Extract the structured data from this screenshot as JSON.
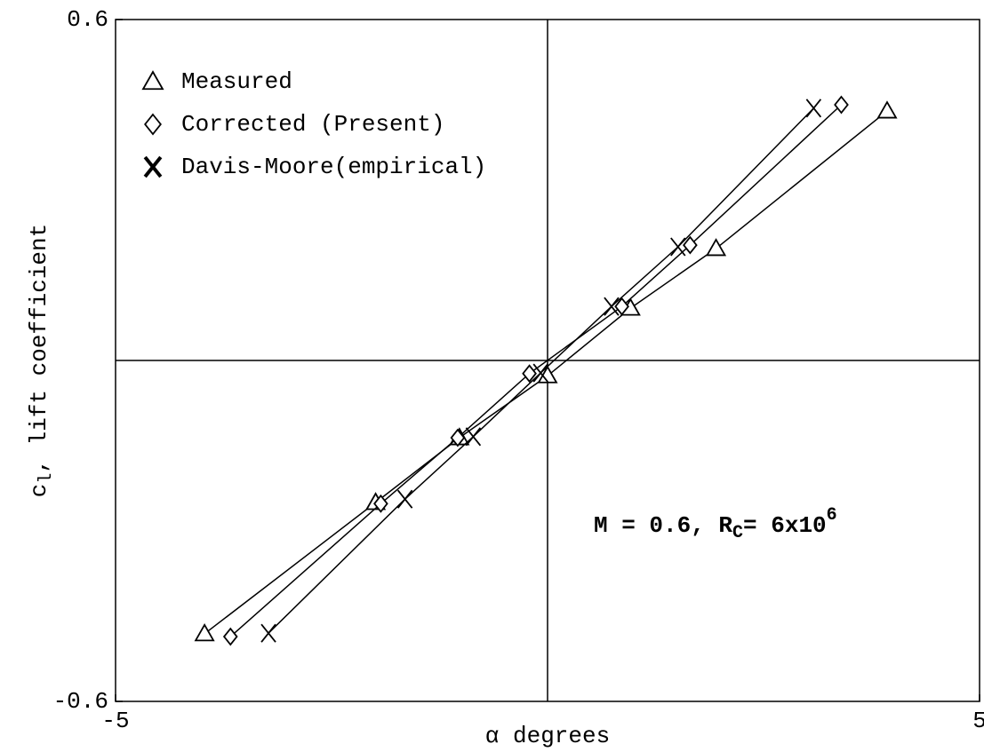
{
  "chart_data": {
    "type": "line",
    "xlabel": "α degrees",
    "ylabel": {
      "main": "c",
      "sub": "l",
      "rest": ", lift coefficient"
    },
    "annotation": {
      "main": "M = 0.6, R",
      "sub": "C",
      "mid": "= 6x10",
      "sup": "6"
    },
    "xlim": [
      -5,
      5
    ],
    "xticks": [
      -5,
      5
    ],
    "ylim": [
      -0.6,
      0.6
    ],
    "yticks": [
      -0.6,
      0.6
    ],
    "legend": "upper left",
    "series": [
      {
        "name": "Measured",
        "marker": "triangle",
        "color": "#000000",
        "x": [
          -3.97,
          -1.99,
          -1.02,
          0,
          0.96,
          1.95,
          3.93
        ],
        "values": [
          -0.481,
          -0.25,
          -0.136,
          -0.027,
          0.092,
          0.197,
          0.439
        ]
      },
      {
        "name": "Corrected (Present)",
        "marker": "diamond",
        "color": "#000000",
        "x": [
          -3.67,
          -1.93,
          -1.04,
          -0.21,
          0.86,
          1.65,
          3.4
        ],
        "values": [
          -0.486,
          -0.252,
          -0.136,
          -0.023,
          0.095,
          0.203,
          0.45
        ]
      },
      {
        "name": "Davis-Moore(empirical)",
        "marker": "x",
        "color": "#000000",
        "x": [
          -3.23,
          -1.65,
          -0.86,
          -0.08,
          0.74,
          1.51,
          3.08
        ],
        "values": [
          -0.48,
          -0.244,
          -0.134,
          -0.022,
          0.095,
          0.2,
          0.444
        ]
      }
    ]
  }
}
